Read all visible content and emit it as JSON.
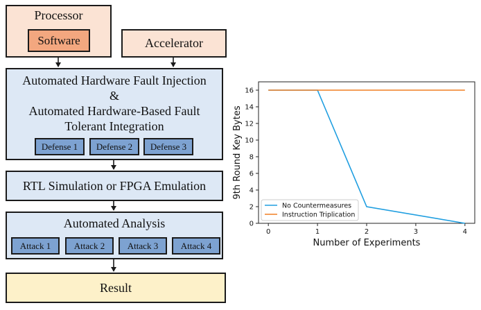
{
  "diagram": {
    "processor_label": "Processor",
    "software_label": "Software",
    "accelerator_label": "Accelerator",
    "injection_lines": [
      "Automated Hardware Fault Injection",
      "&",
      "Automated Hardware-Based Fault",
      "Tolerant Integration"
    ],
    "defenses": [
      "Defense 1",
      "Defense 2",
      "Defense 3"
    ],
    "simulation_label": "RTL Simulation or FPGA Emulation",
    "analysis_label": "Automated Analysis",
    "attacks": [
      "Attack 1",
      "Attack 2",
      "Attack 3",
      "Attack 4"
    ],
    "result_label": "Result",
    "colors": {
      "peach": "#fbe3d4",
      "software": "#f3a77f",
      "blue_panel": "#dde8f5",
      "chip": "#7da2d1",
      "result": "#fdf1c9"
    }
  },
  "chart_data": {
    "type": "line",
    "xlabel": "Number of Experiments",
    "ylabel": "9th Round Key Bytes",
    "xlim": [
      -0.2,
      4.2
    ],
    "ylim": [
      0,
      17
    ],
    "x_ticks": [
      "0",
      "1",
      "2",
      "3",
      "4"
    ],
    "y_ticks": [
      "0",
      "2",
      "4",
      "6",
      "8",
      "10",
      "12",
      "14",
      "16"
    ],
    "grid": false,
    "legend_position": "lower-left",
    "series": [
      {
        "name": "No Countermeasures",
        "color": "#1f9ee0",
        "x": [
          0,
          1,
          2,
          4
        ],
        "y": [
          16,
          16,
          2,
          0
        ]
      },
      {
        "name": "Instruction Triplication",
        "color": "#f07f22",
        "x": [
          0,
          1,
          2,
          3,
          4
        ],
        "y": [
          16,
          16,
          16,
          16,
          16
        ]
      }
    ]
  }
}
